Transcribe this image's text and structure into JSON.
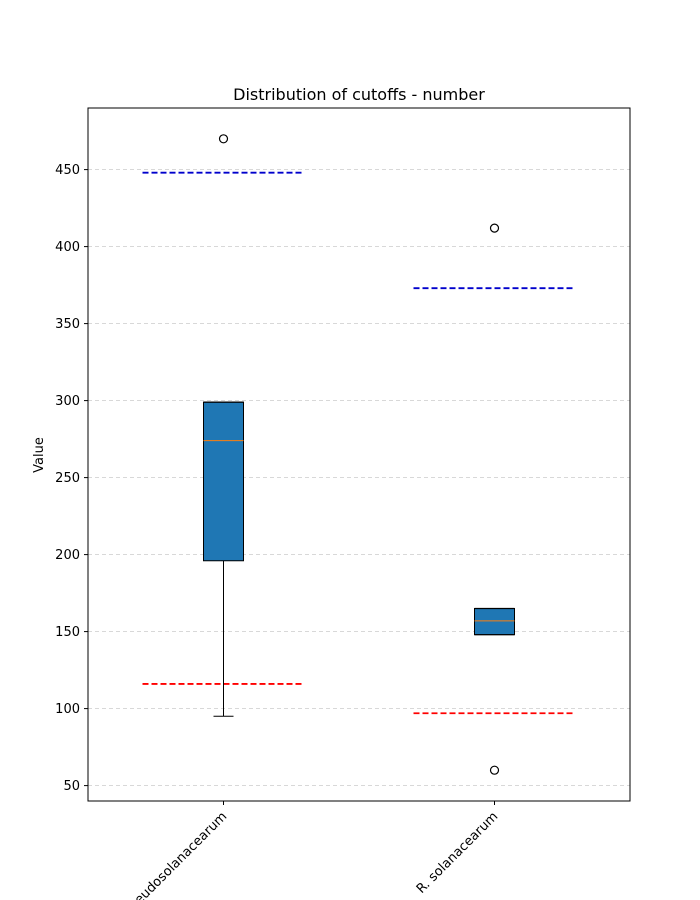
{
  "chart_data": {
    "type": "boxplot",
    "title": "Distribution of cutoffs - number",
    "xlabel": "",
    "ylabel": "Value",
    "ylim": [
      40,
      490
    ],
    "yticks": [
      50,
      100,
      150,
      200,
      250,
      300,
      350,
      400,
      450
    ],
    "grid": "horizontal dashed",
    "categories": [
      "R. pseudosolanacearum",
      "R. solanacearum"
    ],
    "boxes": [
      {
        "category": "R. pseudosolanacearum",
        "whisker_low": 95,
        "q1": 196,
        "median": 274,
        "q3": 299,
        "whisker_high": 299,
        "outliers": [
          470
        ],
        "upper_cutoff": 448,
        "lower_cutoff": 116
      },
      {
        "category": "R. solanacearum",
        "whisker_low": 148,
        "q1": 148,
        "median": 157,
        "q3": 165,
        "whisker_high": 165,
        "outliers": [
          412,
          60
        ],
        "upper_cutoff": 373,
        "lower_cutoff": 97
      }
    ],
    "colors": {
      "box_fill": "#1f77b4",
      "median_line": "#ff7f0e",
      "upper_cutoff_line": "#0000cc",
      "lower_cutoff_line": "#ff0000",
      "grid": "#cccccc"
    }
  }
}
